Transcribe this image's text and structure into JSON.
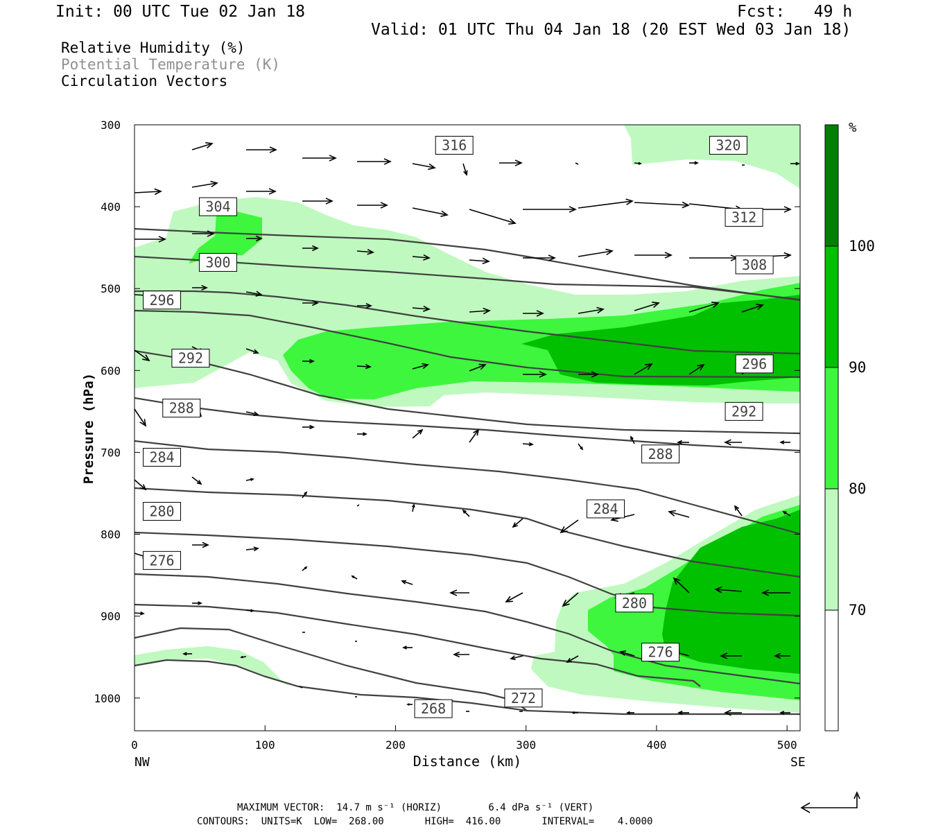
{
  "header": {
    "init": "Init: 00 UTC Tue 02 Jan 18",
    "fcst": "Fcst:   49 h",
    "valid": "Valid: 01 UTC Thu 04 Jan 18 (20 EST Wed 03 Jan 18)"
  },
  "fields": {
    "rh": "Relative Humidity (%)",
    "theta": "Potential Temperature (K)",
    "vectors": "Circulation Vectors"
  },
  "footer": {
    "line1": "MAXIMUM VECTOR:  14.7 m s⁻¹ (HORIZ)        6.4 dPa s⁻¹ (VERT)",
    "line2": "CONTOURS:  UNITS=K  LOW=  268.00       HIGH=  416.00       INTERVAL=    4.0000"
  },
  "colors": {
    "rh70": "#bff9bf",
    "rh80": "#3ef63e",
    "rh90": "#00c000",
    "rh100": "#008000",
    "contour": "#404040",
    "vector": "#000000"
  },
  "chart_data": {
    "type": "contour",
    "xlabel": "Distance (km)",
    "ylabel": "Pressure (hPa)",
    "xlim": [
      0,
      510
    ],
    "ylim": [
      1040,
      300
    ],
    "xticks": [
      0,
      100,
      200,
      300,
      400,
      500
    ],
    "yticks": [
      300,
      400,
      500,
      600,
      700,
      800,
      900,
      1000
    ],
    "x_end_labels": {
      "left": "NW",
      "right": "SE"
    },
    "colorbar": {
      "unit": "%",
      "levels": [
        70,
        80,
        90,
        100
      ],
      "colors": [
        "#ffffff",
        "#bff9bf",
        "#3ef63e",
        "#00c000",
        "#008000"
      ]
    },
    "theta_contour_labels": [
      {
        "label": "316",
        "x": 245,
        "p": 325
      },
      {
        "label": "320",
        "x": 455,
        "p": 325
      },
      {
        "label": "304",
        "x": 64,
        "p": 400
      },
      {
        "label": "312",
        "x": 467,
        "p": 413
      },
      {
        "label": "300",
        "x": 64,
        "p": 468
      },
      {
        "label": "308",
        "x": 475,
        "p": 471
      },
      {
        "label": "296",
        "x": 21,
        "p": 514
      },
      {
        "label": "292",
        "x": 43,
        "p": 585
      },
      {
        "label": "296",
        "x": 475,
        "p": 592
      },
      {
        "label": "288",
        "x": 36,
        "p": 646
      },
      {
        "label": "292",
        "x": 467,
        "p": 650
      },
      {
        "label": "284",
        "x": 21,
        "p": 706
      },
      {
        "label": "288",
        "x": 403,
        "p": 702
      },
      {
        "label": "284",
        "x": 361,
        "p": 769
      },
      {
        "label": "280",
        "x": 21,
        "p": 772
      },
      {
        "label": "276",
        "x": 21,
        "p": 832
      },
      {
        "label": "280",
        "x": 383,
        "p": 884
      },
      {
        "label": "276",
        "x": 403,
        "p": 944
      },
      {
        "label": "272",
        "x": 298,
        "p": 1000
      },
      {
        "label": "268",
        "x": 229,
        "p": 1013
      }
    ]
  }
}
